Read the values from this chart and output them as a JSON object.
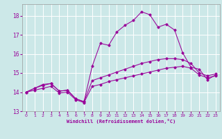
{
  "xlabel": "Windchill (Refroidissement éolien,°C)",
  "bg_color": "#cce8e8",
  "grid_color": "#aacccc",
  "line_color": "#990099",
  "xlim": [
    -0.5,
    23.5
  ],
  "ylim": [
    13.0,
    18.6
  ],
  "yticks": [
    13,
    14,
    15,
    16,
    17,
    18
  ],
  "xticks": [
    0,
    1,
    2,
    3,
    4,
    5,
    6,
    7,
    8,
    9,
    10,
    11,
    12,
    13,
    14,
    15,
    16,
    17,
    18,
    19,
    20,
    21,
    22,
    23
  ],
  "series_peak_x": [
    0,
    1,
    2,
    3,
    4,
    5,
    6,
    7,
    8,
    9,
    10,
    11,
    12,
    13,
    14,
    15,
    16,
    17,
    18,
    19,
    20,
    21,
    22,
    23
  ],
  "series_peak_y": [
    14.0,
    14.2,
    14.4,
    14.45,
    14.05,
    14.1,
    13.65,
    13.5,
    15.35,
    16.55,
    16.45,
    17.15,
    17.5,
    17.75,
    18.2,
    18.05,
    17.4,
    17.55,
    17.25,
    16.05,
    15.3,
    15.2,
    14.65,
    14.9
  ],
  "series_mid_x": [
    0,
    1,
    2,
    3,
    4,
    5,
    6,
    7,
    8,
    9,
    10,
    11,
    12,
    13,
    14,
    15,
    16,
    17,
    18,
    19,
    20,
    21,
    22,
    23
  ],
  "series_mid_y": [
    14.0,
    14.2,
    14.35,
    14.45,
    14.05,
    14.1,
    13.65,
    13.5,
    14.6,
    14.75,
    14.9,
    15.05,
    15.2,
    15.35,
    15.5,
    15.6,
    15.7,
    15.75,
    15.75,
    15.7,
    15.5,
    15.0,
    14.85,
    14.95
  ],
  "series_low_x": [
    0,
    1,
    2,
    3,
    4,
    5,
    6,
    7,
    8,
    9,
    10,
    11,
    12,
    13,
    14,
    15,
    16,
    17,
    18,
    19,
    20,
    21,
    22,
    23
  ],
  "series_low_y": [
    14.0,
    14.1,
    14.2,
    14.3,
    13.95,
    14.0,
    13.6,
    13.45,
    14.3,
    14.4,
    14.55,
    14.65,
    14.75,
    14.85,
    14.95,
    15.05,
    15.15,
    15.25,
    15.3,
    15.35,
    15.25,
    14.9,
    14.75,
    14.85
  ]
}
